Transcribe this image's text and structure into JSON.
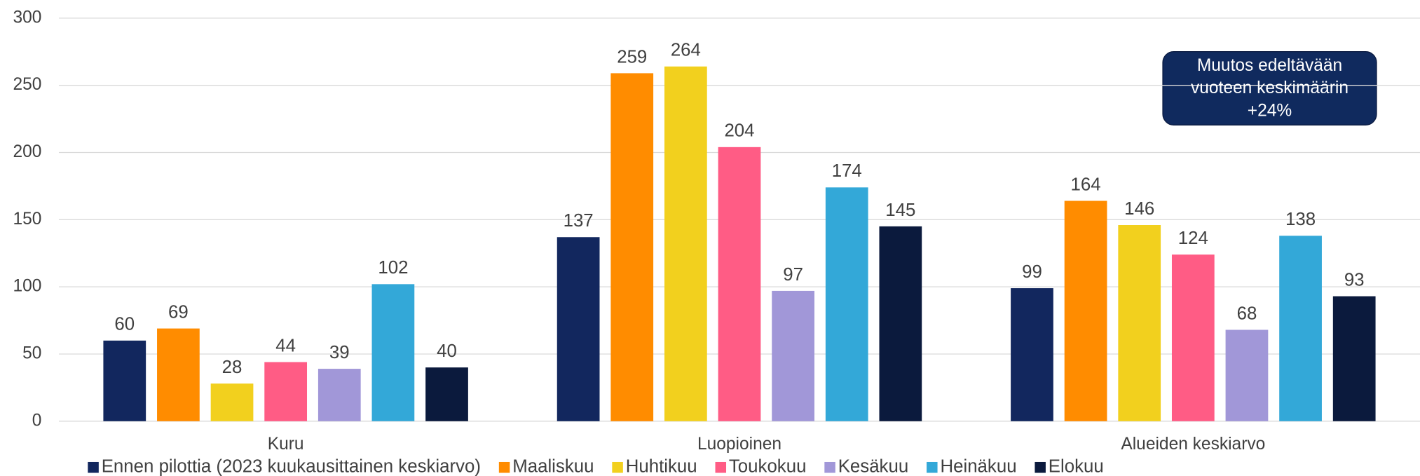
{
  "chart_data": {
    "type": "bar",
    "categories": [
      "Kuru",
      "Luopioinen",
      "Alueiden keskiarvo"
    ],
    "series": [
      {
        "name": "Ennen pilottia (2023 kuukausittainen keskiarvo)",
        "color": "#12275e",
        "values": [
          60,
          137,
          99
        ]
      },
      {
        "name": "Maaliskuu",
        "color": "#ff8c00",
        "values": [
          69,
          259,
          164
        ]
      },
      {
        "name": "Huhtikuu",
        "color": "#f2d01e",
        "values": [
          28,
          264,
          146
        ]
      },
      {
        "name": "Toukokuu",
        "color": "#ff5c85",
        "values": [
          44,
          204,
          124
        ]
      },
      {
        "name": "Kesäkuu",
        "color": "#a197d8",
        "values": [
          39,
          97,
          68
        ]
      },
      {
        "name": "Heinäkuu",
        "color": "#33a8d8",
        "values": [
          102,
          174,
          138
        ]
      },
      {
        "name": "Elokuu",
        "color": "#0b1a3d",
        "values": [
          40,
          145,
          93
        ]
      }
    ],
    "ylim": [
      0,
      300
    ],
    "yticks": [
      0,
      50,
      100,
      150,
      200,
      250,
      300
    ],
    "grid": true,
    "annotation": [
      "Muutos edeltävään",
      "vuoteen keskimäärin",
      "+24%"
    ],
    "legend": "bottom"
  }
}
